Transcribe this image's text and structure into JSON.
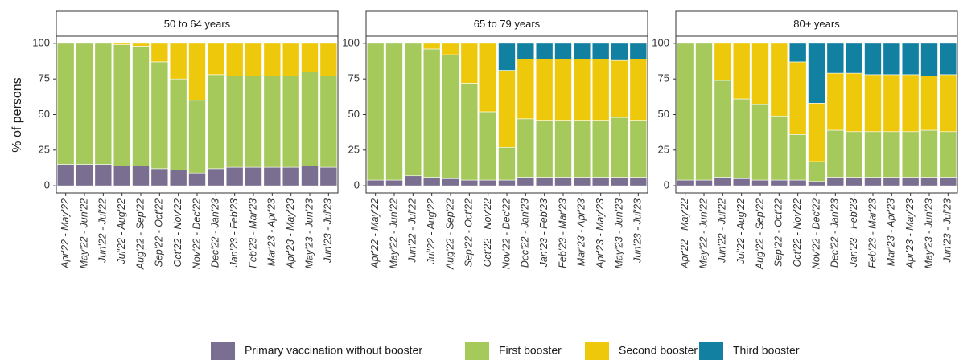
{
  "chart_data": {
    "type": "bar",
    "stacked": true,
    "ylabel": "% of persons",
    "categories": [
      "Apr'22 - May'22",
      "May'22 - Jun'22",
      "Jun'22 - Jul'22",
      "Jul'22 - Aug'22",
      "Aug'22 - Sep'22",
      "Sep'22 - Oct'22",
      "Oct'22 - Nov'22",
      "Nov'22 - Dec'22",
      "Dec'22 - Jan'23",
      "Jan'23 - Feb'23",
      "Feb'23 - Mar'23",
      "Mar'23 - Apr'23",
      "Apr'23 - May'23",
      "May'23 - Jun'23",
      "Jun'23 - Jul'23"
    ],
    "ylim": [
      -5,
      105
    ],
    "yticks": [
      0,
      25,
      50,
      75,
      100
    ],
    "grid": false,
    "series": [
      {
        "name": "Primary vaccination without booster",
        "color": "#7a6e91"
      },
      {
        "name": "First booster",
        "color": "#a6c95b"
      },
      {
        "name": "Second booster",
        "color": "#eec90b"
      },
      {
        "name": "Third booster",
        "color": "#1280a0"
      }
    ],
    "facets": [
      {
        "title": "50 to 64 years",
        "series": [
          {
            "values": [
              15,
              15,
              15,
              14,
              14,
              12,
              11,
              9,
              12,
              13,
              13,
              13,
              13,
              14,
              13
            ]
          },
          {
            "values": [
              85,
              85,
              85,
              85,
              84,
              75,
              64,
              51,
              66,
              64,
              64,
              64,
              64,
              66,
              64
            ]
          },
          {
            "values": [
              0,
              0,
              0,
              1,
              2,
              13,
              25,
              40,
              22,
              23,
              23,
              23,
              23,
              20,
              23
            ]
          },
          {
            "values": [
              0,
              0,
              0,
              0,
              0,
              0,
              0,
              0,
              0,
              0,
              0,
              0,
              0,
              0,
              0
            ]
          }
        ]
      },
      {
        "title": "65 to 79 years",
        "series": [
          {
            "values": [
              4,
              4,
              7,
              6,
              5,
              4,
              4,
              4,
              6,
              6,
              6,
              6,
              6,
              6,
              6
            ]
          },
          {
            "values": [
              96,
              96,
              93,
              90,
              87,
              68,
              48,
              23,
              41,
              40,
              40,
              40,
              40,
              42,
              40
            ]
          },
          {
            "values": [
              0,
              0,
              0,
              4,
              8,
              28,
              48,
              54,
              42,
              43,
              43,
              43,
              43,
              40,
              43
            ]
          },
          {
            "values": [
              0,
              0,
              0,
              0,
              0,
              0,
              0,
              19,
              11,
              11,
              11,
              11,
              11,
              12,
              11
            ]
          }
        ]
      },
      {
        "title": "80+ years",
        "series": [
          {
            "values": [
              4,
              4,
              6,
              5,
              4,
              4,
              4,
              3,
              6,
              6,
              6,
              6,
              6,
              6,
              6
            ]
          },
          {
            "values": [
              96,
              96,
              68,
              56,
              53,
              45,
              32,
              14,
              33,
              32,
              32,
              32,
              32,
              33,
              32
            ]
          },
          {
            "values": [
              0,
              0,
              26,
              39,
              43,
              51,
              51,
              41,
              40,
              41,
              40,
              40,
              40,
              38,
              40
            ]
          },
          {
            "values": [
              0,
              0,
              0,
              0,
              0,
              0,
              13,
              42,
              21,
              21,
              22,
              22,
              22,
              23,
              22
            ]
          }
        ]
      }
    ]
  }
}
